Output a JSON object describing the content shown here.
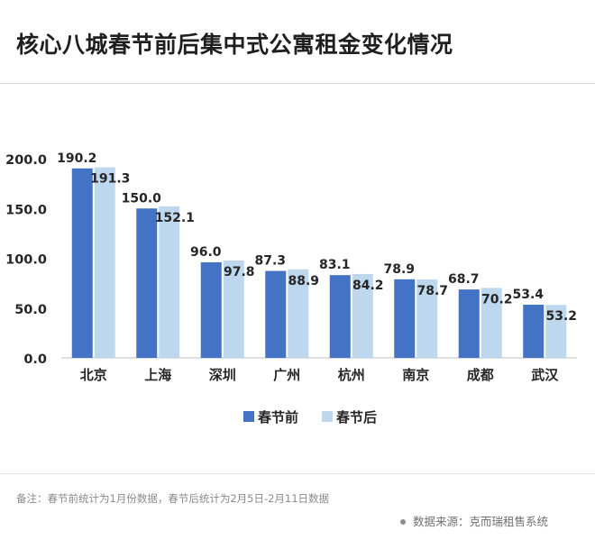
{
  "title": "核心八城春节前后集中式公寓租金变化情况",
  "footnote": "备注：春节前统计为1月份数据，春节后统计为2月5日-2月11日数据",
  "source": "数据来源：克而瑞租售系统",
  "colors": {
    "before": "#4472C4",
    "after": "#BDD7EE"
  },
  "chart_data": {
    "type": "bar",
    "categories": [
      "北京",
      "上海",
      "深圳",
      "广州",
      "杭州",
      "南京",
      "成都",
      "武汉"
    ],
    "series": [
      {
        "name": "春节前",
        "values": [
          190.2,
          150.0,
          96.0,
          87.3,
          83.1,
          78.9,
          68.7,
          53.4
        ]
      },
      {
        "name": "春节后",
        "values": [
          191.3,
          152.1,
          97.8,
          88.9,
          84.2,
          78.7,
          70.2,
          53.2
        ]
      }
    ],
    "yticks": [
      "0.0",
      "50.0",
      "100.0",
      "150.0",
      "200.0"
    ],
    "ylim": [
      0,
      200
    ],
    "legend_position": "bottom",
    "grid": false
  }
}
